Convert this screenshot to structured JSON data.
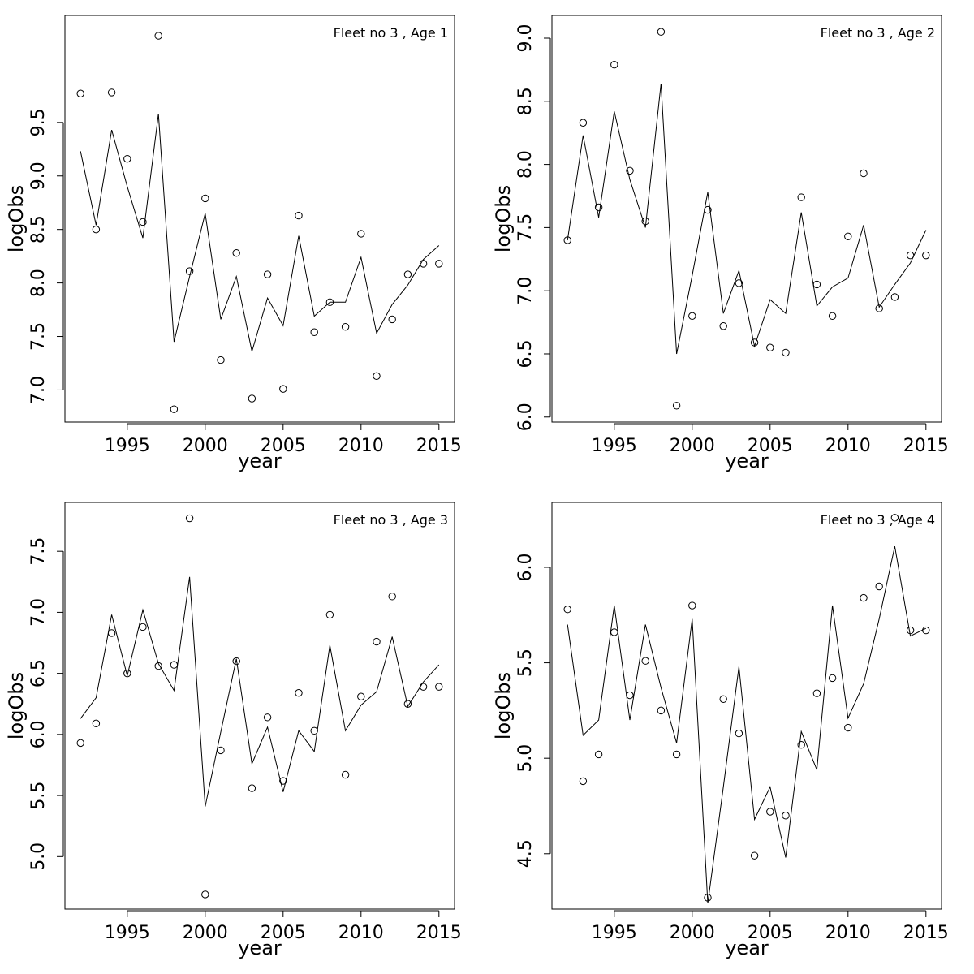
{
  "chart_data": [
    {
      "type": "scatter",
      "title": "Fleet no 3 , Age 1",
      "xlabel": "year",
      "ylabel": "logObs",
      "xlim": [
        1991,
        2016
      ],
      "ylim": [
        6.7,
        10.5
      ],
      "xticks": [
        "1995",
        "2000",
        "2005",
        "2010",
        "2015"
      ],
      "yticks": [
        "7.0",
        "7.5",
        "8.0",
        "8.5",
        "9.0",
        "9.5"
      ],
      "x": [
        1992,
        1993,
        1994,
        1995,
        1996,
        1997,
        1998,
        1999,
        2000,
        2001,
        2002,
        2003,
        2004,
        2005,
        2006,
        2007,
        2008,
        2009,
        2010,
        2011,
        2012,
        2013,
        2014,
        2015
      ],
      "series": [
        {
          "kind": "points",
          "values": [
            9.77,
            8.5,
            9.78,
            9.16,
            8.57,
            10.31,
            6.82,
            8.11,
            8.79,
            7.28,
            8.28,
            6.92,
            8.08,
            7.01,
            8.63,
            7.54,
            7.82,
            7.59,
            8.46,
            7.13,
            7.66,
            8.08,
            8.18,
            8.18
          ]
        },
        {
          "kind": "line",
          "values": [
            9.23,
            8.54,
            9.43,
            8.9,
            8.42,
            9.58,
            7.45,
            8.06,
            8.65,
            7.66,
            8.06,
            7.36,
            7.86,
            7.6,
            8.44,
            7.69,
            7.82,
            7.82,
            8.24,
            7.53,
            7.8,
            7.98,
            8.22,
            8.35
          ]
        }
      ]
    },
    {
      "type": "scatter",
      "title": "Fleet no 3 , Age 2",
      "xlabel": "year",
      "ylabel": "logObs",
      "xlim": [
        1991,
        2016
      ],
      "ylim": [
        5.96,
        9.18
      ],
      "xticks": [
        "1995",
        "2000",
        "2005",
        "2010",
        "2015"
      ],
      "yticks": [
        "6.0",
        "6.5",
        "7.0",
        "7.5",
        "8.0",
        "8.5",
        "9.0"
      ],
      "x": [
        1992,
        1993,
        1994,
        1995,
        1996,
        1997,
        1998,
        1999,
        2000,
        2001,
        2002,
        2003,
        2004,
        2005,
        2006,
        2007,
        2008,
        2009,
        2010,
        2011,
        2012,
        2013,
        2014,
        2015
      ],
      "series": [
        {
          "kind": "points",
          "values": [
            7.4,
            8.33,
            7.66,
            8.79,
            7.95,
            7.55,
            9.05,
            6.09,
            6.8,
            7.64,
            6.72,
            7.06,
            6.59,
            6.55,
            6.51,
            7.74,
            7.05,
            6.8,
            7.43,
            7.93,
            6.86,
            6.95,
            7.28,
            7.28
          ]
        },
        {
          "kind": "line",
          "values": [
            7.4,
            8.23,
            7.58,
            8.42,
            7.88,
            7.5,
            8.64,
            6.5,
            7.12,
            7.78,
            6.82,
            7.16,
            6.56,
            6.93,
            6.82,
            7.62,
            6.88,
            7.03,
            7.1,
            7.52,
            6.87,
            7.05,
            7.22,
            7.48
          ]
        }
      ]
    },
    {
      "type": "scatter",
      "title": "Fleet no 3 , Age 3",
      "xlabel": "year",
      "ylabel": "logObs",
      "xlim": [
        1991,
        2016
      ],
      "ylim": [
        4.57,
        7.9
      ],
      "xticks": [
        "1995",
        "2000",
        "2005",
        "2010",
        "2015"
      ],
      "yticks": [
        "5.0",
        "5.5",
        "6.0",
        "6.5",
        "7.0",
        "7.5"
      ],
      "x": [
        1992,
        1993,
        1994,
        1995,
        1996,
        1997,
        1998,
        1999,
        2000,
        2001,
        2002,
        2003,
        2004,
        2005,
        2006,
        2007,
        2008,
        2009,
        2010,
        2011,
        2012,
        2013,
        2014,
        2015
      ],
      "series": [
        {
          "kind": "points",
          "values": [
            5.93,
            6.09,
            6.83,
            6.5,
            6.88,
            6.56,
            6.57,
            7.77,
            4.69,
            5.87,
            6.6,
            5.56,
            6.14,
            5.62,
            6.34,
            6.03,
            6.98,
            5.67,
            6.31,
            6.76,
            7.13,
            6.25,
            6.39,
            6.39
          ]
        },
        {
          "kind": "line",
          "values": [
            6.13,
            6.3,
            6.98,
            6.48,
            7.02,
            6.58,
            6.36,
            7.29,
            5.41,
            6.02,
            6.62,
            5.76,
            6.06,
            5.53,
            6.03,
            5.86,
            6.73,
            6.03,
            6.24,
            6.35,
            6.8,
            6.23,
            6.43,
            6.57
          ]
        }
      ]
    },
    {
      "type": "scatter",
      "title": "Fleet no 3 , Age 4",
      "xlabel": "year",
      "ylabel": "logObs",
      "xlim": [
        1991,
        2016
      ],
      "ylim": [
        4.21,
        6.34
      ],
      "xticks": [
        "1995",
        "2000",
        "2005",
        "2010",
        "2015"
      ],
      "yticks": [
        "4.5",
        "5.0",
        "5.5",
        "6.0"
      ],
      "x": [
        1992,
        1993,
        1994,
        1995,
        1996,
        1997,
        1998,
        1999,
        2000,
        2001,
        2002,
        2003,
        2004,
        2005,
        2006,
        2007,
        2008,
        2009,
        2010,
        2011,
        2012,
        2013,
        2014,
        2015
      ],
      "series": [
        {
          "kind": "points",
          "values": [
            5.78,
            4.88,
            5.02,
            5.66,
            5.33,
            5.51,
            5.25,
            5.02,
            5.8,
            4.27,
            5.31,
            5.13,
            4.49,
            4.72,
            4.7,
            5.07,
            5.34,
            5.42,
            5.16,
            5.84,
            5.9,
            6.26,
            5.67,
            5.67
          ]
        },
        {
          "kind": "line",
          "values": [
            5.7,
            5.12,
            5.2,
            5.8,
            5.2,
            5.7,
            5.37,
            5.08,
            5.73,
            4.24,
            4.85,
            5.48,
            4.68,
            4.85,
            4.48,
            5.14,
            4.94,
            5.8,
            5.21,
            5.39,
            5.73,
            6.11,
            5.64,
            5.68
          ]
        }
      ]
    }
  ]
}
